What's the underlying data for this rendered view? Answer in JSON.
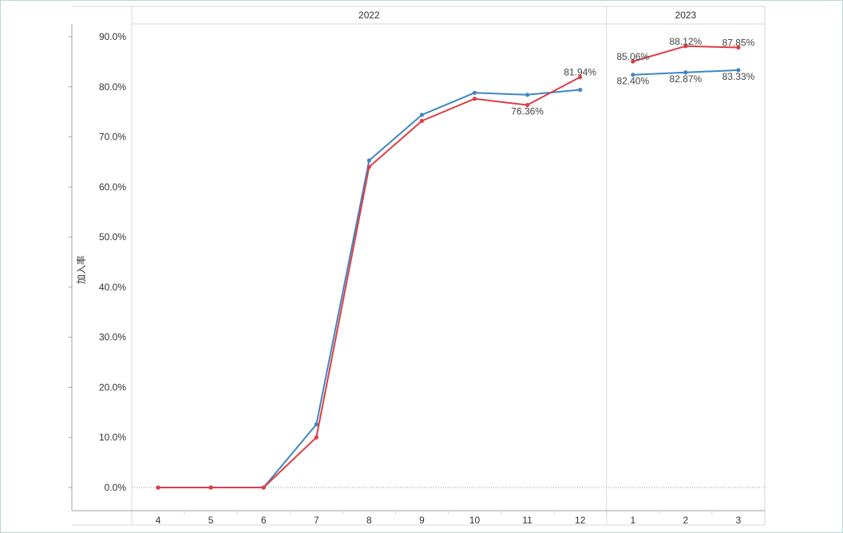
{
  "chart_data": {
    "type": "line",
    "ylabel": "加入率",
    "ylim": [
      0,
      90
    ],
    "y_ticks": [
      "0.0%",
      "10.0%",
      "20.0%",
      "30.0%",
      "40.0%",
      "50.0%",
      "60.0%",
      "70.0%",
      "80.0%",
      "90.0%"
    ],
    "year_groups": [
      {
        "year": "2022",
        "months": [
          "4",
          "5",
          "6",
          "7",
          "8",
          "9",
          "10",
          "11",
          "12"
        ]
      },
      {
        "year": "2023",
        "months": [
          "1",
          "2",
          "3"
        ]
      }
    ],
    "categories": [
      "4",
      "5",
      "6",
      "7",
      "8",
      "9",
      "10",
      "11",
      "12",
      "1",
      "2",
      "3"
    ],
    "series": [
      {
        "color": "#3f86c2",
        "values": [
          0,
          0,
          0,
          12.6,
          65.3,
          74.4,
          78.8,
          78.4,
          79.4,
          82.4,
          82.87,
          83.33
        ],
        "labels": [
          "",
          "",
          "",
          "",
          "",
          "",
          "",
          "",
          "",
          "82.40%",
          "82.87%",
          "83.33%"
        ]
      },
      {
        "color": "#df3c45",
        "values": [
          0,
          0,
          0,
          10.0,
          64.0,
          73.2,
          77.6,
          76.36,
          81.94,
          85.06,
          88.12,
          87.85
        ],
        "labels": [
          "",
          "",
          "",
          "",
          "",
          "",
          "",
          "76.36%",
          "81.94%",
          "85.06%",
          "88.12%",
          "87.85%"
        ]
      }
    ],
    "grid": false,
    "zero_line": "dotted",
    "legend": "none"
  },
  "colors": {
    "axis": "#a0a0a0",
    "divider": "#d8d8d8",
    "zero_line": "#999999",
    "frame": "#b9d7d1"
  }
}
